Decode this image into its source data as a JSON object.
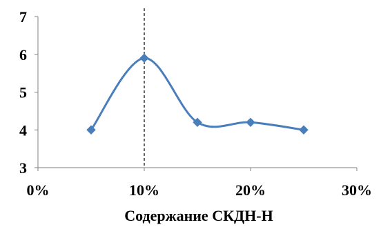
{
  "chart_data": {
    "type": "line",
    "xlabel": "Содержание СКДН-Н",
    "ylabel": "",
    "xlim": [
      0,
      30
    ],
    "ylim": [
      3,
      7
    ],
    "x_ticks": [
      "0%",
      "10%",
      "20%",
      "30%"
    ],
    "y_ticks": [
      "3",
      "4",
      "5",
      "6",
      "7"
    ],
    "x_tick_values": [
      0,
      10,
      20,
      30
    ],
    "y_tick_values": [
      3,
      4,
      5,
      6,
      7
    ],
    "grid": false,
    "smooth": true,
    "marker": "diamond",
    "series_color": "#4a7ebb",
    "reference_line": {
      "x": 10,
      "style": "dashed"
    },
    "series": [
      {
        "x": [
          5,
          10,
          15,
          20,
          25
        ],
        "values": [
          4.0,
          5.9,
          4.2,
          4.2,
          4.0
        ]
      }
    ]
  }
}
